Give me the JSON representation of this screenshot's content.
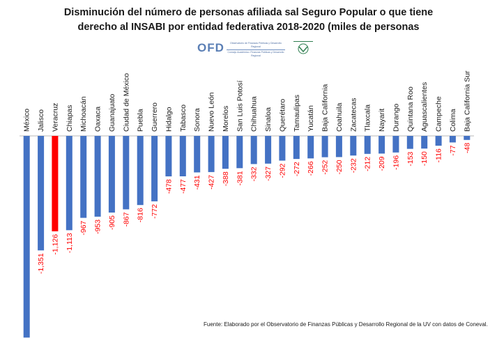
{
  "title_line1": "Disminución  del número de personas  afiliada sal Seguro Popular o que tiene",
  "title_line2": "derecho al INSABI  por entidad federativa 2018-2020 (miles de personas",
  "logo": {
    "acronym": "OFD",
    "subtitle": "Observatorio de Finanzas Públicas y Desarrollo Regional",
    "tagline": "Consejo Académico: Finanzas Públicas y Desarrollo Regional"
  },
  "source_note": "Fuente: Elaborado por el Observatorio de Finanzas Públicas y Desarrollo Regional de la UV con datos de Coneval.",
  "colors": {
    "bar": "#4472C4",
    "highlight_bar": "#FF0000",
    "negative_label": "#FF0000"
  },
  "chart_data": {
    "type": "bar",
    "categories": [
      "México",
      "Jalisco",
      "Veracruz",
      "Chiapas",
      "Michoacán",
      "Oaxaca",
      "Guanajuato",
      "Ciudad de México",
      "Puebla",
      "Guerrero",
      "Hidalgo",
      "Tabasco",
      "Sonora",
      "Nuevo León",
      "Morelos",
      "San Luis Potosí",
      "Chihuahua",
      "Sinaloa",
      "Querétaro",
      "Tamaulipas",
      "Yucatán",
      "Baja California",
      "Coahuila",
      "Zacatecas",
      "Tlaxcala",
      "Nayarit",
      "Durango",
      "Quintana Roo",
      "Aguascalientes",
      "Campeche",
      "Colima",
      "Baja California Sur"
    ],
    "values": [
      -2380,
      -1351,
      -1126,
      -1113,
      -967,
      -953,
      -905,
      -867,
      -816,
      -772,
      -478,
      -477,
      -431,
      -427,
      -388,
      -381,
      -332,
      -327,
      -292,
      -272,
      -266,
      -252,
      -250,
      -232,
      -212,
      -209,
      -196,
      -153,
      -150,
      -116,
      -77,
      -48
    ],
    "data_labels": [
      "",
      "-1,351",
      "-1,126",
      "-1,113",
      "-967",
      "-953",
      "-905",
      "-867",
      "-816",
      "-772",
      "-478",
      "-477",
      "-431",
      "-427",
      "-388",
      "-381",
      "-332",
      "-327",
      "-292",
      "-272",
      "-266",
      "-252",
      "-250",
      "-232",
      "-212",
      "-209",
      "-196",
      "-153",
      "-150",
      "-116",
      "-77",
      "-48"
    ],
    "highlight_category": "Veracruz",
    "xlabel": "",
    "ylabel": "",
    "grid": false
  }
}
